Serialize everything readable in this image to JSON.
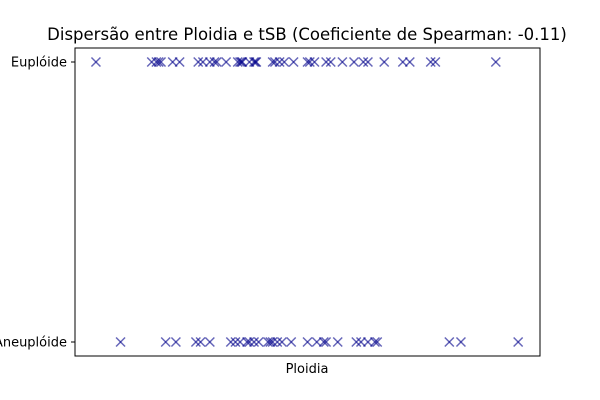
{
  "chart_data": {
    "type": "scatter",
    "title": "Dispersão entre Ploidia e tSB (Coeficiente de Spearman: -0.11)",
    "xlabel": "Ploidia",
    "ylabel": "",
    "x_ticks_shown": false,
    "y_categories": [
      "Aneuplóide",
      "Euplóide"
    ],
    "xlim": [
      0,
      100
    ],
    "grid": false,
    "marker": "x",
    "color": "#00008b",
    "series": [
      {
        "category": "Euplóide",
        "x": [
          4.5,
          16.5,
          17.5,
          18.0,
          18.5,
          21.0,
          22.5,
          26.5,
          27.5,
          29.0,
          30.0,
          30.5,
          32.5,
          35.0,
          35.5,
          35.8,
          36.0,
          37.5,
          38.5,
          38.8,
          39.0,
          42.5,
          43.0,
          44.0,
          45.0,
          47.0,
          50.0,
          50.5,
          51.5,
          54.0,
          55.0,
          57.5,
          60.0,
          62.0,
          63.0,
          66.5,
          70.5,
          72.0,
          76.5,
          77.5,
          90.5
        ]
      },
      {
        "category": "Aneuplóide",
        "x": [
          9.8,
          19.5,
          21.7,
          26.0,
          27.0,
          29.0,
          33.5,
          34.5,
          35.5,
          37.0,
          37.5,
          38.5,
          39.5,
          41.5,
          42.0,
          42.5,
          43.5,
          44.5,
          46.5,
          50.0,
          52.0,
          53.5,
          54.0,
          56.5,
          60.5,
          61.5,
          63.0,
          64.5,
          65.0,
          80.5,
          83.0,
          95.3
        ]
      }
    ]
  }
}
